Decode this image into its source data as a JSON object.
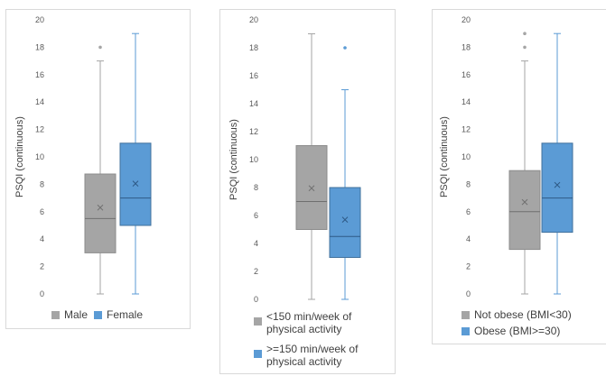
{
  "chart_data": [
    {
      "type": "box",
      "ylabel": "PSQI (continuous)",
      "ylim": [
        0,
        20
      ],
      "yticks": [
        "0",
        "2",
        "4",
        "6",
        "8",
        "10",
        "12",
        "14",
        "16",
        "18",
        "20"
      ],
      "series": [
        {
          "name": "Male",
          "color": "#a5a5a5",
          "min": 0,
          "q1": 3,
          "median": 5.5,
          "q3": 8.75,
          "max": 17,
          "mean": 6.3,
          "outliers": [
            18
          ]
        },
        {
          "name": "Female",
          "color": "#5b9bd5",
          "min": 0,
          "q1": 5,
          "median": 7,
          "q3": 11,
          "max": 19,
          "mean": 8.05,
          "outliers": []
        }
      ]
    },
    {
      "type": "box",
      "ylabel": "PSQI (continuous)",
      "ylim": [
        0,
        20
      ],
      "yticks": [
        "0",
        "2",
        "4",
        "6",
        "8",
        "10",
        "12",
        "14",
        "16",
        "18",
        "20"
      ],
      "series": [
        {
          "name_line1": "<150 min/week of",
          "name_line2": "physical activity",
          "color": "#a5a5a5",
          "min": 0,
          "q1": 5,
          "median": 7,
          "q3": 11,
          "max": 19,
          "mean": 7.95,
          "outliers": []
        },
        {
          "name_line1": ">=150 min/week of",
          "name_line2": "physical activity",
          "color": "#5b9bd5",
          "min": 0,
          "q1": 3,
          "median": 4.5,
          "q3": 8,
          "max": 15,
          "mean": 5.7,
          "outliers": [
            18
          ]
        }
      ]
    },
    {
      "type": "box",
      "ylabel": "PSQI (continuous)",
      "ylim": [
        0,
        20
      ],
      "yticks": [
        "0",
        "2",
        "4",
        "6",
        "8",
        "10",
        "12",
        "14",
        "16",
        "18",
        "20"
      ],
      "series": [
        {
          "name": "Not obese (BMI<30)",
          "color": "#a5a5a5",
          "min": 0,
          "q1": 3.25,
          "median": 6,
          "q3": 9,
          "max": 17,
          "mean": 6.7,
          "outliers": [
            18,
            19
          ]
        },
        {
          "name": "Obese (BMI>=30)",
          "color": "#5b9bd5",
          "min": 0,
          "q1": 4.5,
          "median": 7,
          "q3": 11,
          "max": 19,
          "mean": 7.95,
          "outliers": []
        }
      ]
    }
  ]
}
